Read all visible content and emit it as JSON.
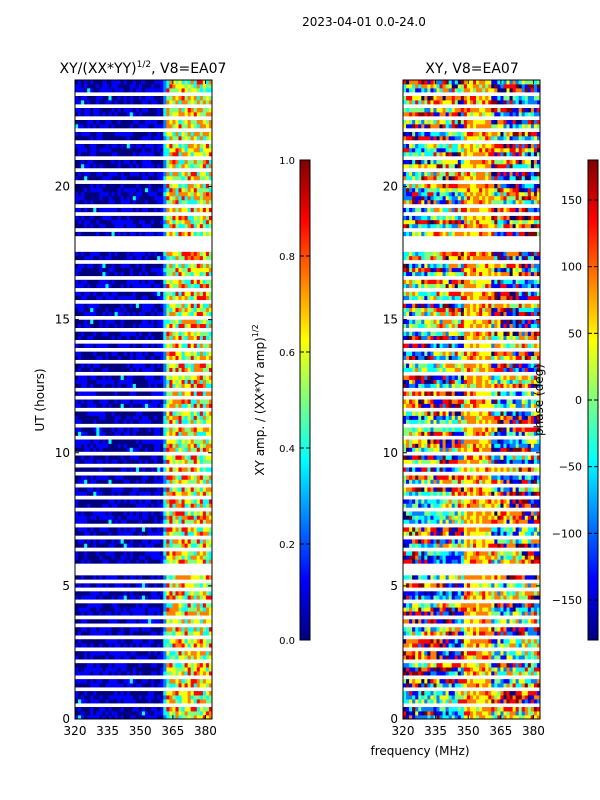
{
  "suptitle": "2023-04-01 0.0-24.0",
  "colors": {
    "jet": [
      "#00007f",
      "#0000ff",
      "#007fff",
      "#00ffff",
      "#7fff7f",
      "#ffff00",
      "#ff7f00",
      "#ff0000",
      "#7f0000"
    ],
    "gap": "#ffffff"
  },
  "chart_data": [
    {
      "type": "heatmap",
      "title_main": "XY/(XX*YY)",
      "title_exp": "1/2",
      "title_tail": ", V8=EA07",
      "ylabel": "UT (hours)",
      "xlabel": "",
      "xlim": [
        320,
        383
      ],
      "ylim": [
        0,
        24
      ],
      "xticks": [
        "320",
        "335",
        "350",
        "365",
        "380"
      ],
      "yticks": [
        "0",
        "5",
        "10",
        "15",
        "20"
      ],
      "colorbar": {
        "label_main": "XY amp. / (XX*YY amp)",
        "label_exp": "1/2",
        "range": [
          0.0,
          1.0
        ],
        "ticks": [
          "0.0",
          "0.2",
          "0.4",
          "0.6",
          "0.8",
          "1.0"
        ]
      },
      "description": "Low amplitude (~0.05) from 320-360 MHz; moderate-to-high amplitude (0.4-0.9) in 360-380 MHz band"
    },
    {
      "type": "heatmap",
      "title": "XY, V8=EA07",
      "ylabel": "",
      "xlabel": "frequency (MHz)",
      "xlim": [
        320,
        383
      ],
      "ylim": [
        0,
        24
      ],
      "xticks": [
        "320",
        "335",
        "350",
        "365",
        "380"
      ],
      "yticks": [
        "0",
        "5",
        "10",
        "15",
        "20"
      ],
      "colorbar": {
        "label": "phase (deg)",
        "range": [
          -180,
          180
        ],
        "ticks": [
          "−150",
          "−100",
          "−50",
          "0",
          "50",
          "100",
          "150"
        ]
      },
      "description": "Noisy phase spanning full -180 to 180 deg range across all frequencies"
    }
  ],
  "gap_times_hours": [
    0.6,
    1.1,
    1.6,
    2.1,
    2.6,
    3.1,
    3.5,
    3.8,
    4.4,
    4.9,
    5.2,
    5.7,
    6.3,
    6.8,
    7.3,
    7.8,
    8.3,
    8.8,
    9.2,
    9.5,
    10.0,
    10.6,
    11.0,
    11.6,
    12.1,
    12.4,
    12.9,
    13.4,
    13.8,
    14.2,
    14.6,
    15.1,
    15.6,
    16.2,
    16.6,
    17.1,
    17.6,
    18.0,
    18.4,
    18.9,
    19.3,
    20.1,
    20.6,
    21.1,
    21.6,
    22.1,
    22.6,
    23.0,
    23.5
  ]
}
